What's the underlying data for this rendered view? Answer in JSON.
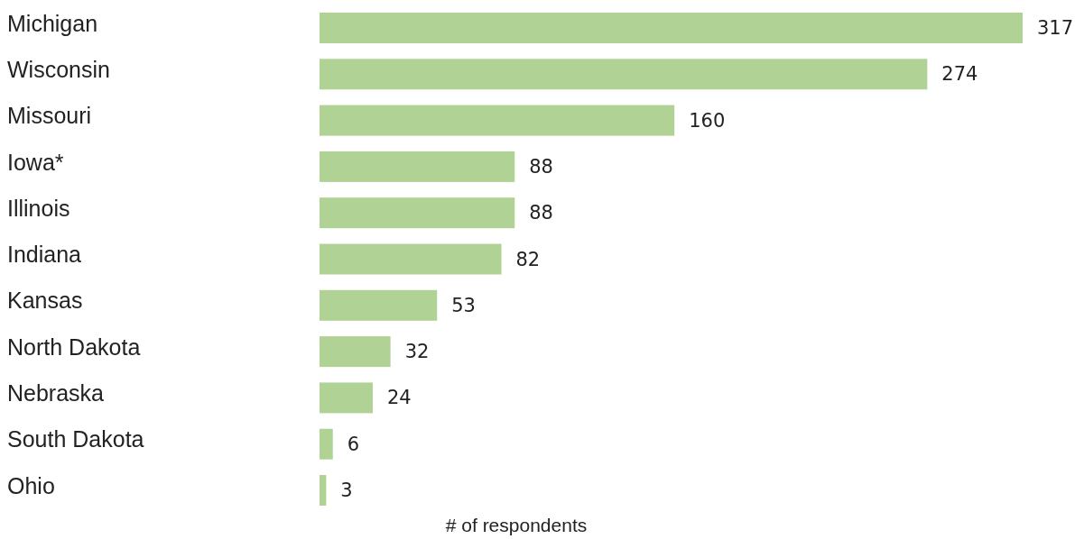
{
  "chart_data": {
    "type": "bar",
    "orientation": "horizontal",
    "categories": [
      "Michigan",
      "Wisconsin",
      "Missouri",
      "Iowa*",
      "Illinois",
      "Indiana",
      "Kansas",
      "North Dakota",
      "Nebraska",
      "South Dakota",
      "Ohio"
    ],
    "values": [
      317,
      274,
      160,
      88,
      88,
      82,
      53,
      32,
      24,
      6,
      3
    ],
    "color": "#b0d395",
    "data_labels": true,
    "xlabel": "# of respondents"
  }
}
